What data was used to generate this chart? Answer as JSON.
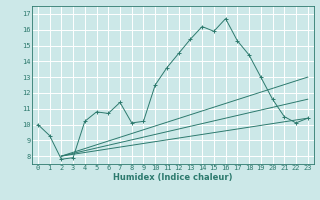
{
  "xlabel": "Humidex (Indice chaleur)",
  "bg_color": "#cce8e8",
  "grid_color": "#ffffff",
  "line_color": "#2d7a6e",
  "x_main": [
    0,
    1,
    2,
    3,
    4,
    5,
    6,
    7,
    8,
    9,
    10,
    11,
    12,
    13,
    14,
    15,
    16,
    17,
    18,
    19,
    20,
    21,
    22,
    23
  ],
  "y_main": [
    10.0,
    9.3,
    7.8,
    7.9,
    10.2,
    10.8,
    10.7,
    11.4,
    10.1,
    10.2,
    12.5,
    13.6,
    14.5,
    15.4,
    16.2,
    15.9,
    16.7,
    15.3,
    14.4,
    13.0,
    11.6,
    10.5,
    10.1,
    10.4
  ],
  "trend_lines": [
    {
      "x": [
        2,
        23
      ],
      "y": [
        8.0,
        10.4
      ]
    },
    {
      "x": [
        2,
        23
      ],
      "y": [
        8.0,
        11.6
      ]
    },
    {
      "x": [
        2,
        23
      ],
      "y": [
        8.0,
        13.0
      ]
    }
  ],
  "xlim": [
    -0.5,
    23.5
  ],
  "ylim": [
    7.5,
    17.5
  ],
  "xticks": [
    0,
    1,
    2,
    3,
    4,
    5,
    6,
    7,
    8,
    9,
    10,
    11,
    12,
    13,
    14,
    15,
    16,
    17,
    18,
    19,
    20,
    21,
    22,
    23
  ],
  "yticks": [
    8,
    9,
    10,
    11,
    12,
    13,
    14,
    15,
    16,
    17
  ]
}
